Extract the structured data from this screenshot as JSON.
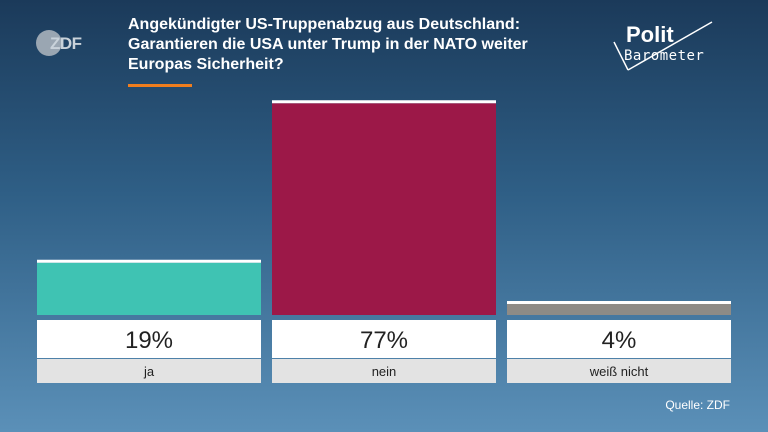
{
  "header": {
    "title": "Angekündigter US-Truppenabzug aus Deutschland: Garantieren die USA unter Trump in der NATO weiter Europas Sicherheit?",
    "brand_left": "ZDF",
    "brand_right_line1": "Polit",
    "brand_right_line2": "Barometer",
    "accent_color": "#f07e1e"
  },
  "footer": {
    "source": "Quelle: ZDF"
  },
  "chart_data": {
    "type": "bar",
    "title": "Angekündigter US-Truppenabzug aus Deutschland: Garantieren die USA unter Trump in der NATO weiter Europas Sicherheit?",
    "categories": [
      "ja",
      "nein",
      "weiß nicht"
    ],
    "values": [
      19,
      77,
      4
    ],
    "value_labels": [
      "19%",
      "77%",
      "4%"
    ],
    "colors": [
      "#3fc3b3",
      "#9c1848",
      "#8e8b86"
    ],
    "ylim": [
      0,
      80
    ],
    "grid": false,
    "legend": "none"
  }
}
